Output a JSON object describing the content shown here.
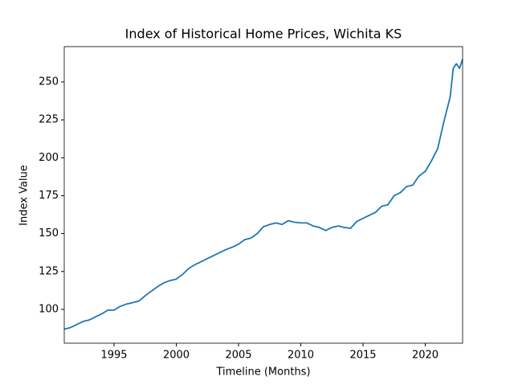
{
  "chart_data": {
    "type": "line",
    "title": "Index of Historical Home Prices, Wichita KS",
    "xlabel": "Timeline (Months)",
    "ylabel": "Index Value",
    "x": [
      1991,
      1991.5,
      1992,
      1992.5,
      1993,
      1993.5,
      1994,
      1994.5,
      1995,
      1995.5,
      1996,
      1996.5,
      1997,
      1997.5,
      1998,
      1998.5,
      1999,
      1999.5,
      2000,
      2000.5,
      2001,
      2001.5,
      2002,
      2002.5,
      2003,
      2003.5,
      2004,
      2004.5,
      2005,
      2005.5,
      2006,
      2006.5,
      2007,
      2007.5,
      2008,
      2008.5,
      2009,
      2009.5,
      2010,
      2010.5,
      2011,
      2011.5,
      2012,
      2012.5,
      2013,
      2013.5,
      2014,
      2014.5,
      2015,
      2015.5,
      2016,
      2016.5,
      2017,
      2017.5,
      2018,
      2018.5,
      2019,
      2019.5,
      2020,
      2020.5,
      2021,
      2021.5,
      2022,
      2022.25,
      2022.5,
      2022.75,
      2023
    ],
    "values": [
      87,
      88,
      90,
      92,
      93,
      95,
      97,
      99.5,
      99.5,
      102,
      103.5,
      104.5,
      105.5,
      109,
      112,
      115,
      117.5,
      119,
      120,
      123,
      127,
      129.5,
      131.5,
      133.5,
      135.5,
      137.5,
      139.5,
      141,
      143,
      146,
      147,
      150,
      154.5,
      156,
      157,
      156,
      158.5,
      157.5,
      157,
      157,
      155,
      154,
      152,
      154,
      155,
      154,
      153.5,
      158,
      160,
      162,
      164,
      168,
      169,
      175,
      177,
      181,
      182,
      188,
      191,
      198,
      206,
      224,
      240,
      259,
      262,
      259,
      265
    ],
    "color": "#1f77b4",
    "xlim": [
      1991,
      2023
    ],
    "xticks": [
      1995,
      2000,
      2005,
      2010,
      2015,
      2020
    ],
    "ylim": [
      77.7,
      273.3
    ],
    "yticks": [
      100,
      125,
      150,
      175,
      200,
      225,
      250
    ]
  }
}
